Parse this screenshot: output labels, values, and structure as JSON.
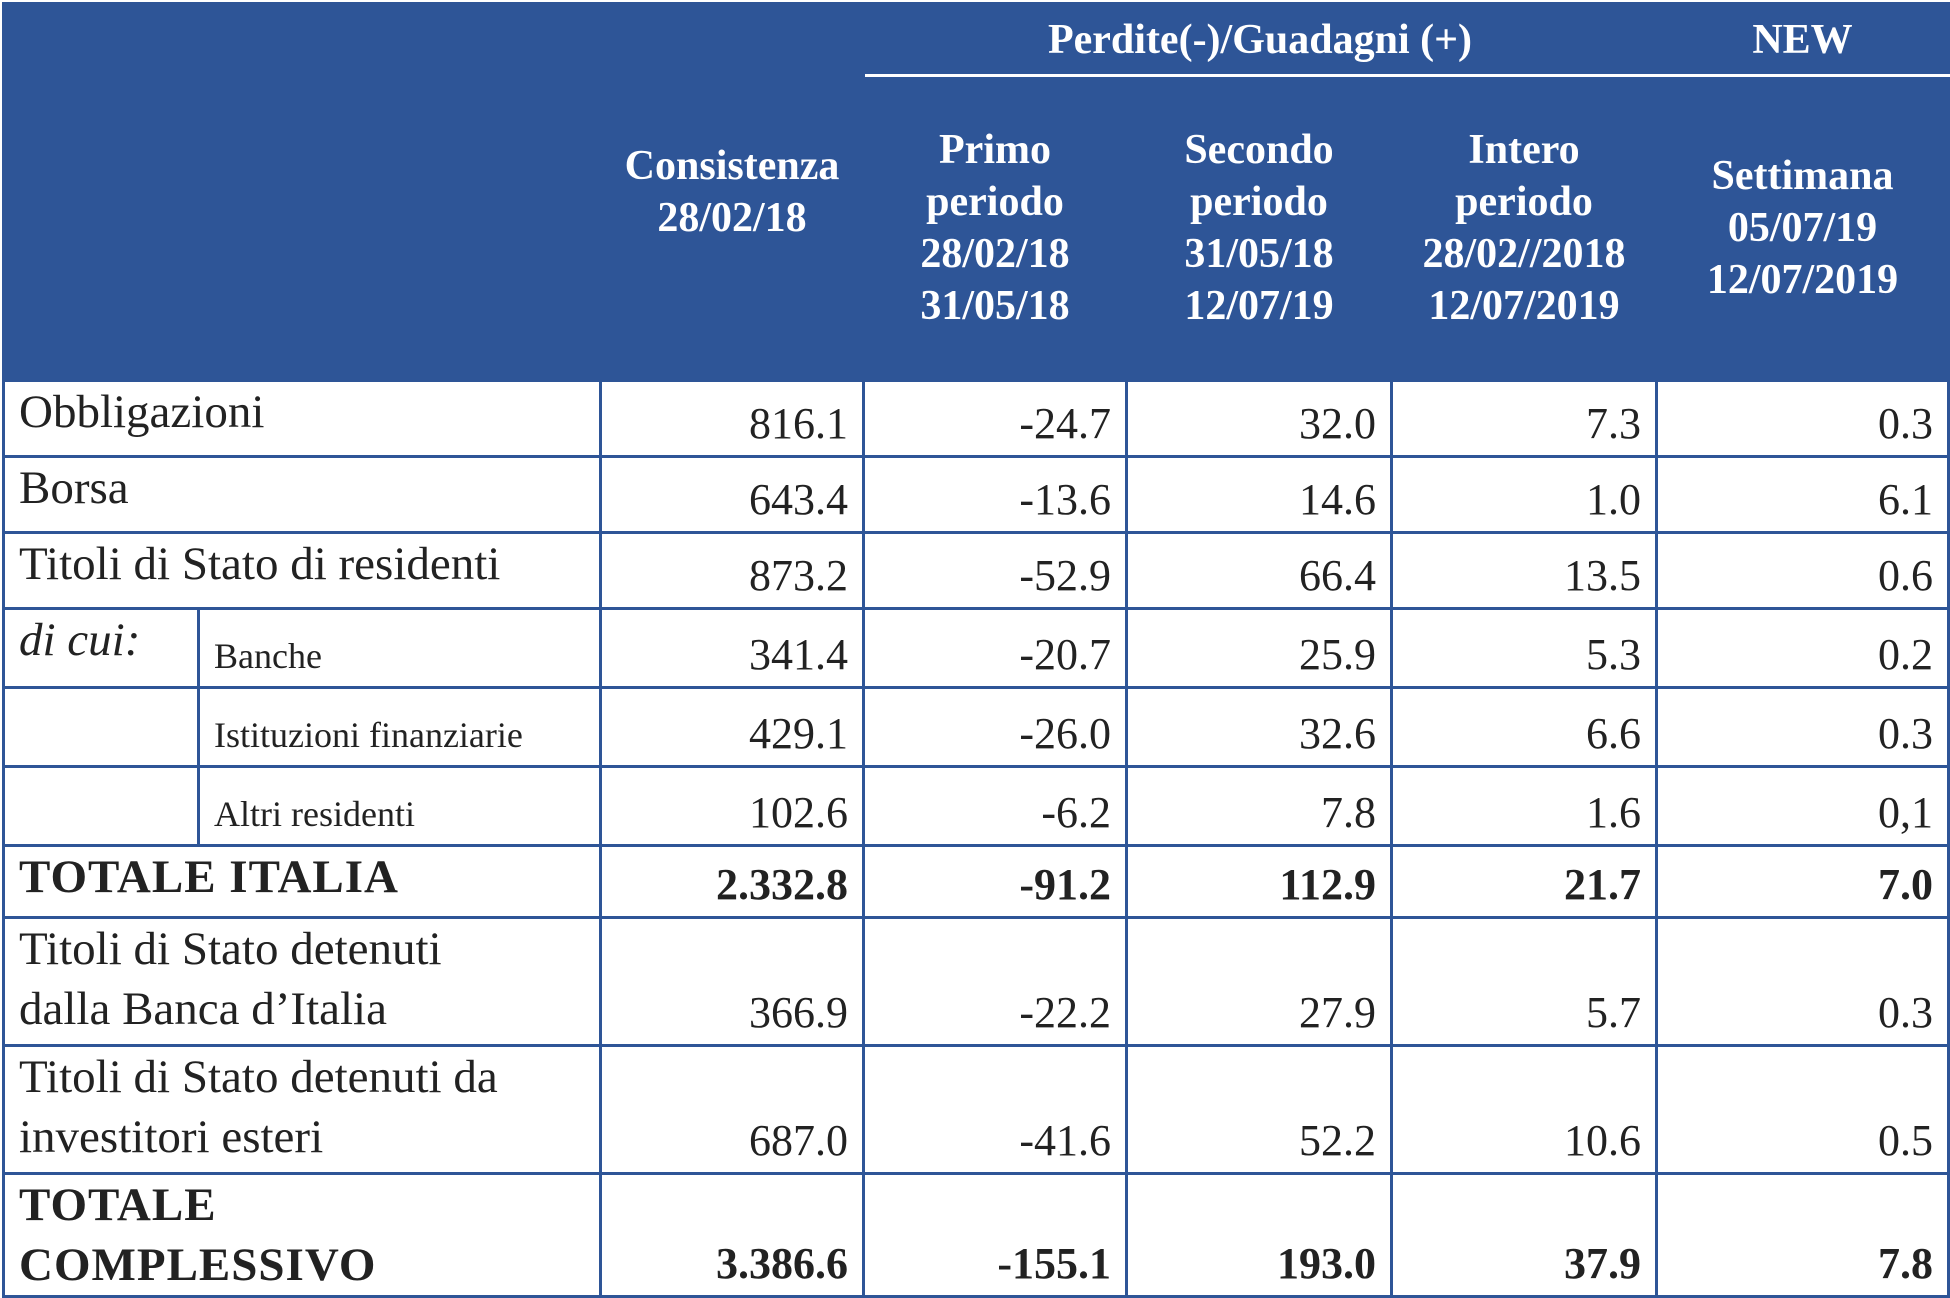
{
  "header": {
    "group_label": "Perdite(-)/Guadagni (+)",
    "new_label": "NEW",
    "columns": [
      {
        "lines": [
          "Consistenza",
          "28/02/18"
        ]
      },
      {
        "lines": [
          "Primo",
          "periodo",
          "28/02/18",
          "31/05/18"
        ]
      },
      {
        "lines": [
          "Secondo",
          "periodo",
          "31/05/18",
          "12/07/19"
        ]
      },
      {
        "lines": [
          "Intero",
          "periodo",
          "28/02//2018",
          "12/07/2019"
        ]
      },
      {
        "lines": [
          "Settimana",
          "05/07/19",
          "12/07/2019"
        ]
      }
    ]
  },
  "rows": {
    "obbligazioni": {
      "label": "Obbligazioni",
      "values": [
        "816.1",
        "-24.7",
        "32.0",
        "7.3",
        "0.3"
      ]
    },
    "borsa": {
      "label": "Borsa",
      "values": [
        "643.4",
        "-13.6",
        "14.6",
        "1.0",
        "6.1"
      ]
    },
    "titoli_residenti": {
      "label": "Titoli di Stato di residenti",
      "values": [
        "873.2",
        "-52.9",
        "66.4",
        "13.5",
        "0.6"
      ]
    },
    "di_cui_label": "di cui:",
    "banche": {
      "label": "Banche",
      "values": [
        "341.4",
        "-20.7",
        "25.9",
        "5.3",
        "0.2"
      ]
    },
    "istituzioni": {
      "label": "Istituzioni finanziarie",
      "values": [
        "429.1",
        "-26.0",
        "32.6",
        "6.6",
        "0.3"
      ]
    },
    "altri": {
      "label": "Altri residenti",
      "values": [
        "102.6",
        "-6.2",
        "7.8",
        "1.6",
        "0,1"
      ]
    },
    "totale_italia": {
      "label": "TOTALE ITALIA",
      "values": [
        "2.332.8",
        "-91.2",
        "112.9",
        "21.7",
        "7.0"
      ]
    },
    "banca_italia": {
      "label_lines": [
        "Titoli di Stato detenuti",
        "dalla Banca d’Italia"
      ],
      "values": [
        "366.9",
        "-22.2",
        "27.9",
        "5.7",
        "0.3"
      ]
    },
    "esteri": {
      "label_lines": [
        "Titoli di Stato detenuti da",
        "investitori esteri"
      ],
      "values": [
        "687.0",
        "-41.6",
        "52.2",
        "10.6",
        "0.5"
      ]
    },
    "totale_complessivo": {
      "label_lines": [
        "TOTALE",
        "COMPLESSIVO"
      ],
      "values": [
        "3.386.6",
        "-155.1",
        "193.0",
        "37.9",
        "7.8"
      ]
    }
  },
  "colors": {
    "header_bg": "#2e5597",
    "border": "#2e5597",
    "header_text": "#ffffff"
  }
}
